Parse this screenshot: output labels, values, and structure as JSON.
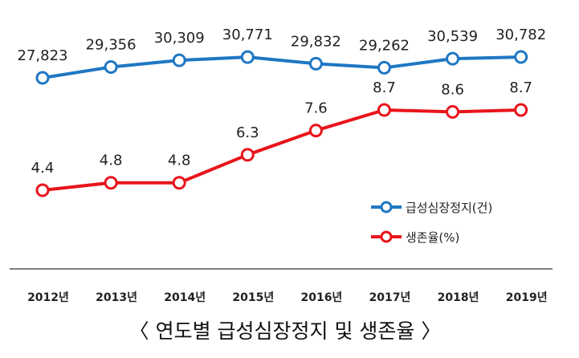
{
  "chart_data": {
    "type": "line",
    "title": "〈 연도별 급성심장정지 및 생존율 〉",
    "categories": [
      "2012년",
      "2013년",
      "2014년",
      "2015년",
      "2016년",
      "2017년",
      "2018년",
      "2019년"
    ],
    "series": [
      {
        "name": "급성심장정지(건)",
        "color": "#1f77c4",
        "values": [
          27823,
          29356,
          30309,
          30771,
          29832,
          29262,
          30539,
          30782
        ],
        "labels": [
          "27,823",
          "29,356",
          "30,309",
          "30,771",
          "29,832",
          "29,262",
          "30,539",
          "30,782"
        ]
      },
      {
        "name": "생존율(%)",
        "color": "#e8141b",
        "values": [
          4.4,
          4.8,
          4.8,
          6.3,
          7.6,
          8.7,
          8.6,
          8.7
        ],
        "labels": [
          "4.4",
          "4.8",
          "4.8",
          "6.3",
          "7.6",
          "8.7",
          "8.6",
          "8.7"
        ]
      }
    ],
    "legend_position": "right",
    "grid": false
  }
}
